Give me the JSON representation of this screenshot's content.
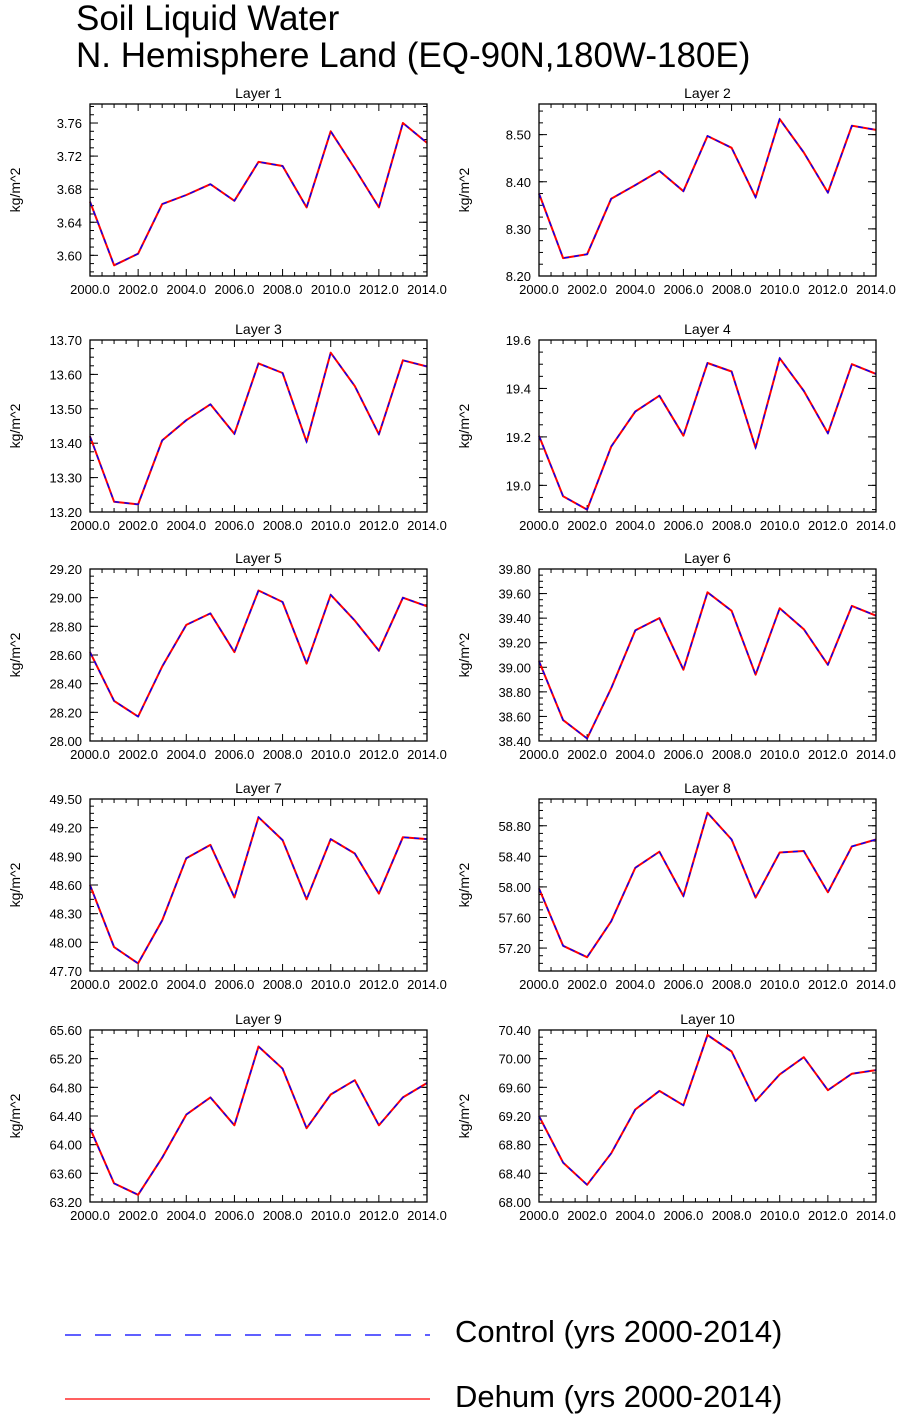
{
  "title": "Soil Liquid Water",
  "subtitle": "N. Hemisphere Land (EQ-90N,180W-180E)",
  "colors": {
    "control": "#0000ff",
    "dehum": "#ff0000",
    "axis": "#000000"
  },
  "legend": [
    {
      "name": "Control (yrs 2000-2014)",
      "style": "dashed",
      "color": "#0000ff"
    },
    {
      "name": "Dehum (yrs 2000-2014)",
      "style": "solid",
      "color": "#ff0000"
    }
  ],
  "chart_data": [
    {
      "type": "line",
      "title": "Layer 1",
      "ylabel": "kg/m^2",
      "xlim": [
        2000,
        2014
      ],
      "xticks": [
        2000,
        2002,
        2004,
        2006,
        2008,
        2010,
        2012,
        2014
      ],
      "xtick_labels": [
        "2000.0",
        "2002.0",
        "2004.0",
        "2006.0",
        "2008.0",
        "2010.0",
        "2012.0",
        "2014.0"
      ],
      "ylim": [
        3.575,
        3.783
      ],
      "yticks": [
        3.6,
        3.64,
        3.68,
        3.72,
        3.76
      ],
      "ytick_labels": [
        "3.60",
        "3.64",
        "3.68",
        "3.72",
        "3.76"
      ],
      "x": [
        2000,
        2001,
        2002,
        2003,
        2004,
        2005,
        2006,
        2007,
        2008,
        2009,
        2010,
        2011,
        2012,
        2013,
        2014
      ],
      "series": [
        {
          "name": "Control (yrs 2000-2014)",
          "values": [
            3.665,
            3.588,
            3.602,
            3.662,
            3.673,
            3.686,
            3.666,
            3.713,
            3.708,
            3.658,
            3.75,
            3.705,
            3.658,
            3.76,
            3.736
          ]
        },
        {
          "name": "Dehum (yrs 2000-2014)",
          "values": [
            3.665,
            3.588,
            3.602,
            3.662,
            3.673,
            3.686,
            3.666,
            3.713,
            3.708,
            3.658,
            3.75,
            3.705,
            3.658,
            3.76,
            3.736
          ]
        }
      ]
    },
    {
      "type": "line",
      "title": "Layer 2",
      "ylabel": "kg/m^2",
      "xlim": [
        2000,
        2014
      ],
      "xticks": [
        2000,
        2002,
        2004,
        2006,
        2008,
        2010,
        2012,
        2014
      ],
      "xtick_labels": [
        "2000.0",
        "2002.0",
        "2004.0",
        "2006.0",
        "2008.0",
        "2010.0",
        "2012.0",
        "2014.0"
      ],
      "ylim": [
        8.2,
        8.565
      ],
      "yticks": [
        8.2,
        8.3,
        8.4,
        8.5
      ],
      "ytick_labels": [
        "8.20",
        "8.30",
        "8.40",
        "8.50"
      ],
      "x": [
        2000,
        2001,
        2002,
        2003,
        2004,
        2005,
        2006,
        2007,
        2008,
        2009,
        2010,
        2011,
        2012,
        2013,
        2014
      ],
      "series": [
        {
          "name": "Control (yrs 2000-2014)",
          "values": [
            8.375,
            8.238,
            8.246,
            8.364,
            8.393,
            8.423,
            8.38,
            8.497,
            8.472,
            8.367,
            8.533,
            8.462,
            8.377,
            8.519,
            8.51
          ]
        },
        {
          "name": "Dehum (yrs 2000-2014)",
          "values": [
            8.375,
            8.238,
            8.246,
            8.364,
            8.393,
            8.423,
            8.38,
            8.497,
            8.472,
            8.367,
            8.533,
            8.462,
            8.377,
            8.519,
            8.51
          ]
        }
      ]
    },
    {
      "type": "line",
      "title": "Layer 3",
      "ylabel": "kg/m^2",
      "xlim": [
        2000,
        2014
      ],
      "xticks": [
        2000,
        2002,
        2004,
        2006,
        2008,
        2010,
        2012,
        2014
      ],
      "xtick_labels": [
        "2000.0",
        "2002.0",
        "2004.0",
        "2006.0",
        "2008.0",
        "2010.0",
        "2012.0",
        "2014.0"
      ],
      "ylim": [
        13.2,
        13.7
      ],
      "yticks": [
        13.2,
        13.3,
        13.4,
        13.5,
        13.6,
        13.7
      ],
      "ytick_labels": [
        "13.20",
        "13.30",
        "13.40",
        "13.50",
        "13.60",
        "13.70"
      ],
      "x": [
        2000,
        2001,
        2002,
        2003,
        2004,
        2005,
        2006,
        2007,
        2008,
        2009,
        2010,
        2011,
        2012,
        2013,
        2014
      ],
      "series": [
        {
          "name": "Control (yrs 2000-2014)",
          "values": [
            13.42,
            13.23,
            13.222,
            13.408,
            13.467,
            13.513,
            13.427,
            13.632,
            13.604,
            13.404,
            13.663,
            13.566,
            13.426,
            13.641,
            13.623
          ]
        },
        {
          "name": "Dehum (yrs 2000-2014)",
          "values": [
            13.42,
            13.23,
            13.222,
            13.408,
            13.467,
            13.513,
            13.427,
            13.632,
            13.604,
            13.404,
            13.663,
            13.566,
            13.426,
            13.641,
            13.623
          ]
        }
      ]
    },
    {
      "type": "line",
      "title": "Layer 4",
      "ylabel": "kg/m^2",
      "xlim": [
        2000,
        2014
      ],
      "xticks": [
        2000,
        2002,
        2004,
        2006,
        2008,
        2010,
        2012,
        2014
      ],
      "xtick_labels": [
        "2000.0",
        "2002.0",
        "2004.0",
        "2006.0",
        "2008.0",
        "2010.0",
        "2012.0",
        "2014.0"
      ],
      "ylim": [
        18.89,
        19.6
      ],
      "yticks": [
        19.0,
        19.2,
        19.4,
        19.6
      ],
      "ytick_labels": [
        "19.0",
        "19.2",
        "19.4",
        "19.6"
      ],
      "x": [
        2000,
        2001,
        2002,
        2003,
        2004,
        2005,
        2006,
        2007,
        2008,
        2009,
        2010,
        2011,
        2012,
        2013,
        2014
      ],
      "series": [
        {
          "name": "Control (yrs 2000-2014)",
          "values": [
            19.205,
            18.955,
            18.9,
            19.16,
            19.305,
            19.37,
            19.205,
            19.505,
            19.47,
            19.155,
            19.525,
            19.39,
            19.215,
            19.5,
            19.46
          ]
        },
        {
          "name": "Dehum (yrs 2000-2014)",
          "values": [
            19.205,
            18.955,
            18.9,
            19.16,
            19.305,
            19.37,
            19.205,
            19.505,
            19.47,
            19.155,
            19.525,
            19.39,
            19.215,
            19.5,
            19.46
          ]
        }
      ]
    },
    {
      "type": "line",
      "title": "Layer 5",
      "ylabel": "kg/m^2",
      "xlim": [
        2000,
        2014
      ],
      "xticks": [
        2000,
        2002,
        2004,
        2006,
        2008,
        2010,
        2012,
        2014
      ],
      "xtick_labels": [
        "2000.0",
        "2002.0",
        "2004.0",
        "2006.0",
        "2008.0",
        "2010.0",
        "2012.0",
        "2014.0"
      ],
      "ylim": [
        28.0,
        29.2
      ],
      "yticks": [
        28.0,
        28.2,
        28.4,
        28.6,
        28.8,
        29.0,
        29.2
      ],
      "ytick_labels": [
        "28.00",
        "28.20",
        "28.40",
        "28.60",
        "28.80",
        "29.00",
        "29.20"
      ],
      "x": [
        2000,
        2001,
        2002,
        2003,
        2004,
        2005,
        2006,
        2007,
        2008,
        2009,
        2010,
        2011,
        2012,
        2013,
        2014
      ],
      "series": [
        {
          "name": "Control (yrs 2000-2014)",
          "values": [
            28.62,
            28.28,
            28.17,
            28.52,
            28.81,
            28.89,
            28.62,
            29.05,
            28.97,
            28.54,
            29.02,
            28.84,
            28.63,
            29.0,
            28.94
          ]
        },
        {
          "name": "Dehum (yrs 2000-2014)",
          "values": [
            28.62,
            28.28,
            28.17,
            28.52,
            28.81,
            28.89,
            28.62,
            29.05,
            28.97,
            28.54,
            29.02,
            28.84,
            28.63,
            29.0,
            28.94
          ]
        }
      ]
    },
    {
      "type": "line",
      "title": "Layer 6",
      "ylabel": "kg/m^2",
      "xlim": [
        2000,
        2014
      ],
      "xticks": [
        2000,
        2002,
        2004,
        2006,
        2008,
        2010,
        2012,
        2014
      ],
      "xtick_labels": [
        "2000.0",
        "2002.0",
        "2004.0",
        "2006.0",
        "2008.0",
        "2010.0",
        "2012.0",
        "2014.0"
      ],
      "ylim": [
        38.4,
        39.8
      ],
      "yticks": [
        38.4,
        38.6,
        38.8,
        39.0,
        39.2,
        39.4,
        39.6,
        39.8
      ],
      "ytick_labels": [
        "38.40",
        "38.60",
        "38.80",
        "39.00",
        "39.20",
        "39.40",
        "39.60",
        "39.80"
      ],
      "x": [
        2000,
        2001,
        2002,
        2003,
        2004,
        2005,
        2006,
        2007,
        2008,
        2009,
        2010,
        2011,
        2012,
        2013,
        2014
      ],
      "series": [
        {
          "name": "Control (yrs 2000-2014)",
          "values": [
            39.05,
            38.57,
            38.42,
            38.83,
            39.3,
            39.4,
            38.98,
            39.61,
            39.46,
            38.94,
            39.48,
            39.31,
            39.02,
            39.5,
            39.42
          ]
        },
        {
          "name": "Dehum (yrs 2000-2014)",
          "values": [
            39.05,
            38.57,
            38.42,
            38.83,
            39.3,
            39.4,
            38.98,
            39.61,
            39.46,
            38.94,
            39.48,
            39.31,
            39.02,
            39.5,
            39.42
          ]
        }
      ]
    },
    {
      "type": "line",
      "title": "Layer 7",
      "ylabel": "kg/m^2",
      "xlim": [
        2000,
        2014
      ],
      "xticks": [
        2000,
        2002,
        2004,
        2006,
        2008,
        2010,
        2012,
        2014
      ],
      "xtick_labels": [
        "2000.0",
        "2002.0",
        "2004.0",
        "2006.0",
        "2008.0",
        "2010.0",
        "2012.0",
        "2014.0"
      ],
      "ylim": [
        47.7,
        49.5
      ],
      "yticks": [
        47.7,
        48.0,
        48.3,
        48.6,
        48.9,
        49.2,
        49.5
      ],
      "ytick_labels": [
        "47.70",
        "48.00",
        "48.30",
        "48.60",
        "48.90",
        "49.20",
        "49.50"
      ],
      "x": [
        2000,
        2001,
        2002,
        2003,
        2004,
        2005,
        2006,
        2007,
        2008,
        2009,
        2010,
        2011,
        2012,
        2013,
        2014
      ],
      "series": [
        {
          "name": "Control (yrs 2000-2014)",
          "values": [
            48.6,
            47.95,
            47.78,
            48.23,
            48.88,
            49.02,
            48.47,
            49.31,
            49.07,
            48.45,
            49.08,
            48.93,
            48.51,
            49.1,
            49.08
          ]
        },
        {
          "name": "Dehum (yrs 2000-2014)",
          "values": [
            48.6,
            47.95,
            47.78,
            48.23,
            48.88,
            49.02,
            48.47,
            49.31,
            49.07,
            48.45,
            49.08,
            48.93,
            48.51,
            49.1,
            49.08
          ]
        }
      ]
    },
    {
      "type": "line",
      "title": "Layer 8",
      "ylabel": "kg/m^2",
      "xlim": [
        2000,
        2014
      ],
      "xticks": [
        2000,
        2002,
        2004,
        2006,
        2008,
        2010,
        2012,
        2014
      ],
      "xtick_labels": [
        "2000.0",
        "2002.0",
        "2004.0",
        "2006.0",
        "2008.0",
        "2010.0",
        "2012.0",
        "2014.0"
      ],
      "ylim": [
        56.9,
        59.15
      ],
      "yticks": [
        57.2,
        57.6,
        58.0,
        58.4,
        58.8
      ],
      "ytick_labels": [
        "57.20",
        "57.60",
        "58.00",
        "58.40",
        "58.80"
      ],
      "x": [
        2000,
        2001,
        2002,
        2003,
        2004,
        2005,
        2006,
        2007,
        2008,
        2009,
        2010,
        2011,
        2012,
        2013,
        2014
      ],
      "series": [
        {
          "name": "Control (yrs 2000-2014)",
          "values": [
            57.98,
            57.23,
            57.08,
            57.55,
            58.25,
            58.46,
            57.88,
            58.97,
            58.62,
            57.86,
            58.45,
            58.47,
            57.93,
            58.53,
            58.62
          ]
        },
        {
          "name": "Dehum (yrs 2000-2014)",
          "values": [
            57.98,
            57.23,
            57.08,
            57.55,
            58.25,
            58.46,
            57.88,
            58.97,
            58.62,
            57.86,
            58.45,
            58.47,
            57.93,
            58.53,
            58.62
          ]
        }
      ]
    },
    {
      "type": "line",
      "title": "Layer 9",
      "ylabel": "kg/m^2",
      "xlim": [
        2000,
        2014
      ],
      "xticks": [
        2000,
        2002,
        2004,
        2006,
        2008,
        2010,
        2012,
        2014
      ],
      "xtick_labels": [
        "2000.0",
        "2002.0",
        "2004.0",
        "2006.0",
        "2008.0",
        "2010.0",
        "2012.0",
        "2014.0"
      ],
      "ylim": [
        63.2,
        65.6
      ],
      "yticks": [
        63.2,
        63.6,
        64.0,
        64.4,
        64.8,
        65.2,
        65.6
      ],
      "ytick_labels": [
        "63.20",
        "63.60",
        "64.00",
        "64.40",
        "64.80",
        "65.20",
        "65.60"
      ],
      "x": [
        2000,
        2001,
        2002,
        2003,
        2004,
        2005,
        2006,
        2007,
        2008,
        2009,
        2010,
        2011,
        2012,
        2013,
        2014
      ],
      "series": [
        {
          "name": "Control (yrs 2000-2014)",
          "values": [
            64.23,
            63.46,
            63.3,
            63.82,
            64.42,
            64.66,
            64.27,
            65.37,
            65.06,
            64.23,
            64.7,
            64.9,
            64.27,
            64.66,
            64.86
          ]
        },
        {
          "name": "Dehum (yrs 2000-2014)",
          "values": [
            64.23,
            63.46,
            63.3,
            63.82,
            64.42,
            64.66,
            64.27,
            65.37,
            65.06,
            64.23,
            64.7,
            64.9,
            64.27,
            64.66,
            64.86
          ]
        }
      ]
    },
    {
      "type": "line",
      "title": "Layer 10",
      "ylabel": "kg/m^2",
      "xlim": [
        2000,
        2014
      ],
      "xticks": [
        2000,
        2002,
        2004,
        2006,
        2008,
        2010,
        2012,
        2014
      ],
      "xtick_labels": [
        "2000.0",
        "2002.0",
        "2004.0",
        "2006.0",
        "2008.0",
        "2010.0",
        "2012.0",
        "2014.0"
      ],
      "ylim": [
        68.0,
        70.4
      ],
      "yticks": [
        68.0,
        68.4,
        68.8,
        69.2,
        69.6,
        70.0,
        70.4
      ],
      "ytick_labels": [
        "68.00",
        "68.40",
        "68.80",
        "69.20",
        "69.60",
        "70.00",
        "70.40"
      ],
      "x": [
        2000,
        2001,
        2002,
        2003,
        2004,
        2005,
        2006,
        2007,
        2008,
        2009,
        2010,
        2011,
        2012,
        2013,
        2014
      ],
      "series": [
        {
          "name": "Control (yrs 2000-2014)",
          "values": [
            69.2,
            68.55,
            68.24,
            68.68,
            69.29,
            69.55,
            69.35,
            70.33,
            70.1,
            69.41,
            69.78,
            70.02,
            69.56,
            69.79,
            69.84
          ]
        },
        {
          "name": "Dehum (yrs 2000-2014)",
          "values": [
            69.2,
            68.55,
            68.24,
            68.68,
            69.29,
            69.55,
            69.35,
            70.33,
            70.1,
            69.41,
            69.78,
            70.02,
            69.56,
            69.79,
            69.84
          ]
        }
      ]
    }
  ]
}
